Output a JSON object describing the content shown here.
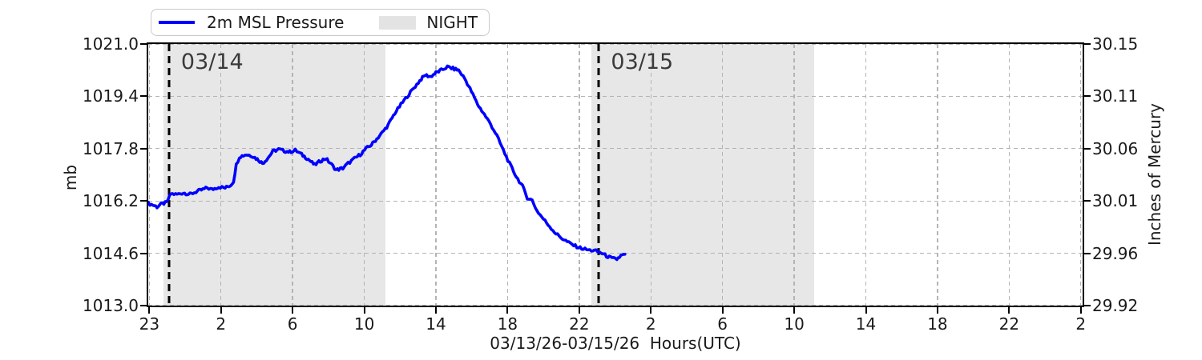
{
  "chart_data": {
    "type": "line",
    "x_axis": {
      "label": "03/13/26-03/15/26  Hours(UTC)",
      "tick_labels": [
        "23",
        "2",
        "6",
        "10",
        "14",
        "18",
        "22",
        "2",
        "6",
        "10",
        "14",
        "18",
        "22",
        "2"
      ],
      "tick_hours": [
        -0.1,
        3.9,
        7.9,
        11.9,
        15.9,
        19.9,
        23.9,
        27.9,
        31.9,
        35.9,
        39.9,
        43.9,
        47.9,
        51.9
      ],
      "range_hours": [
        -0.16,
        52.0
      ],
      "grid": true
    },
    "y_axis_left": {
      "label": "mb",
      "tick_labels": [
        "1021.0",
        "1019.4",
        "1017.8",
        "1016.2",
        "1014.6",
        "1013.0"
      ],
      "tick_values": [
        1021.0,
        1019.4,
        1017.8,
        1016.2,
        1014.6,
        1013.0
      ],
      "range": [
        1013.0,
        1021.0
      ],
      "grid": true
    },
    "y_axis_right": {
      "label": "Inches of Mercury",
      "tick_labels": [
        "30.15",
        "30.11",
        "30.06",
        "30.01",
        "29.96",
        "29.92"
      ]
    },
    "night_shading": {
      "label": "NIGHT",
      "color": "#e7e7e7",
      "spans_hours": [
        [
          0.7,
          13.1
        ],
        [
          24.6,
          37.0
        ]
      ]
    },
    "day_boundaries": [
      {
        "hour": 1.0,
        "label": "03/14"
      },
      {
        "hour": 25.0,
        "label": "03/15"
      }
    ],
    "series": [
      {
        "name": "2m MSL Pressure",
        "color": "#0000ff",
        "x_hours": [
          -0.15,
          0.1,
          0.33,
          0.55,
          0.87,
          1.1,
          1.45,
          1.8,
          2.16,
          2.5,
          2.88,
          3.14,
          3.4,
          3.77,
          4.13,
          4.44,
          4.6,
          4.75,
          4.93,
          5.3,
          5.64,
          6.0,
          6.22,
          6.5,
          6.8,
          7.12,
          7.43,
          7.74,
          8.05,
          8.4,
          8.77,
          9.13,
          9.44,
          9.75,
          10.06,
          10.33,
          10.7,
          11.0,
          11.36,
          11.67,
          12.0,
          12.3,
          12.6,
          12.92,
          13.23,
          13.6,
          13.95,
          14.3,
          14.66,
          15.0,
          15.3,
          15.6,
          15.9,
          16.2,
          16.54,
          16.85,
          17.16,
          17.5,
          17.88,
          18.23,
          18.6,
          18.95,
          19.3,
          19.66,
          20.0,
          20.38,
          20.73,
          21.0,
          21.27,
          21.54,
          21.9,
          22.25,
          22.6,
          22.96,
          23.32,
          23.68,
          24.04,
          24.4,
          24.75,
          25.1,
          25.42,
          25.73,
          26.0,
          26.22,
          26.45
        ],
        "pressure_mb": [
          1016.12,
          1016.08,
          1016.02,
          1016.1,
          1016.15,
          1016.42,
          1016.4,
          1016.45,
          1016.4,
          1016.48,
          1016.55,
          1016.6,
          1016.55,
          1016.63,
          1016.6,
          1016.68,
          1016.8,
          1017.3,
          1017.55,
          1017.62,
          1017.58,
          1017.45,
          1017.35,
          1017.5,
          1017.72,
          1017.78,
          1017.73,
          1017.7,
          1017.75,
          1017.62,
          1017.48,
          1017.3,
          1017.42,
          1017.5,
          1017.32,
          1017.15,
          1017.2,
          1017.35,
          1017.5,
          1017.62,
          1017.8,
          1017.92,
          1018.1,
          1018.3,
          1018.52,
          1018.88,
          1019.15,
          1019.4,
          1019.65,
          1019.88,
          1020.05,
          1020.0,
          1020.12,
          1020.2,
          1020.3,
          1020.25,
          1020.2,
          1019.95,
          1019.55,
          1019.15,
          1018.85,
          1018.55,
          1018.2,
          1017.75,
          1017.35,
          1016.95,
          1016.65,
          1016.3,
          1016.22,
          1015.9,
          1015.65,
          1015.42,
          1015.2,
          1015.05,
          1014.92,
          1014.82,
          1014.75,
          1014.7,
          1014.68,
          1014.62,
          1014.52,
          1014.44,
          1014.42,
          1014.52,
          1014.57
        ]
      }
    ],
    "legend": {
      "items": [
        {
          "label": "2m MSL Pressure",
          "swatch": "line",
          "color": "#0000ff"
        },
        {
          "label": "NIGHT",
          "swatch": "patch",
          "color": "#e3e3e3"
        }
      ],
      "position": "top-left"
    }
  }
}
